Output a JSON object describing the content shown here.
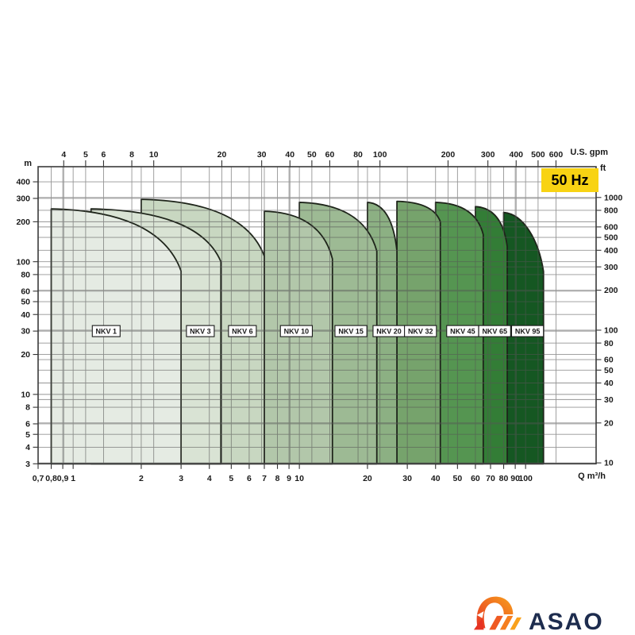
{
  "chart_data": {
    "type": "area",
    "badge": "50 Hz",
    "q_range": [
      0.7,
      205
    ],
    "h_range": [
      3,
      520
    ],
    "x_axis_bottom": {
      "unit": "Q m³/h",
      "ticks": [
        0.7,
        0.8,
        0.9,
        1,
        2,
        3,
        4,
        5,
        6,
        7,
        8,
        9,
        10,
        20,
        30,
        40,
        50,
        60,
        70,
        80,
        90,
        100
      ],
      "tick_labels": [
        "0,7",
        "0,8",
        "0,9",
        "1",
        "2",
        "3",
        "4",
        "5",
        "6",
        "7",
        "8",
        "9",
        "10",
        "20",
        "30",
        "40",
        "50",
        "60",
        "70",
        "80",
        "90",
        "100"
      ]
    },
    "x_axis_top": {
      "unit": "U.S. gpm",
      "gpm_per_m3h": 4.4029,
      "ticks": [
        4,
        5,
        6,
        8,
        10,
        20,
        30,
        40,
        50,
        60,
        80,
        100,
        200,
        300,
        400,
        500,
        600
      ]
    },
    "y_axis_left": {
      "unit": "m",
      "ticks": [
        400,
        300,
        200,
        100,
        80,
        60,
        50,
        40,
        30,
        20,
        10,
        8,
        6,
        5,
        4,
        3
      ]
    },
    "y_axis_right": {
      "unit": "ft",
      "ft_per_m": 3.2808,
      "ticks": [
        1000,
        800,
        600,
        500,
        400,
        300,
        200,
        100,
        80,
        60,
        50,
        40,
        30,
        20,
        10
      ]
    },
    "label_row_head_m": 30,
    "regions": [
      {
        "label": "NKV 1",
        "q_min": 0.8,
        "q_max": 3,
        "h_max": 250,
        "h_at_qmax": 85,
        "label_q": 1.4,
        "color": "#e5ebe3"
      },
      {
        "label": "NKV 3",
        "q_min": 1.2,
        "q_max": 4.5,
        "h_max": 250,
        "h_at_qmax": 100,
        "label_q": 3.65,
        "color": "#d9e3d4"
      },
      {
        "label": "NKV 6",
        "q_min": 2,
        "q_max": 7,
        "h_max": 295,
        "h_at_qmax": 110,
        "label_q": 5.6,
        "color": "#c8d7c1"
      },
      {
        "label": "NKV 10",
        "q_min": 7,
        "q_max": 14,
        "h_max": 240,
        "h_at_qmax": 105,
        "label_q": 9.7,
        "color": "#b2c7aa"
      },
      {
        "label": "NKV 15",
        "q_min": 10,
        "q_max": 22,
        "h_max": 280,
        "h_at_qmax": 120,
        "label_q": 16.9,
        "color": "#9dba94"
      },
      {
        "label": "NKV 20",
        "q_min": 20,
        "q_max": 27,
        "h_max": 280,
        "h_at_qmax": 120,
        "label_q": 24.9,
        "color": "#8cb083"
      },
      {
        "label": "NKV 32",
        "q_min": 27,
        "q_max": 42,
        "h_max": 285,
        "h_at_qmax": 200,
        "label_q": 34.3,
        "color": "#76a36c"
      },
      {
        "label": "NKV 45",
        "q_min": 40,
        "q_max": 65,
        "h_max": 280,
        "h_at_qmax": 160,
        "label_q": 52.7,
        "color": "#559551"
      },
      {
        "label": "NKV 65",
        "q_min": 60,
        "q_max": 83,
        "h_max": 260,
        "h_at_qmax": 130,
        "label_q": 73,
        "color": "#337d36"
      },
      {
        "label": "NKV 95",
        "q_min": 80,
        "q_max": 120,
        "h_max": 235,
        "h_at_qmax": 60,
        "label_q": 102,
        "rounded": true,
        "color": "#155722"
      }
    ],
    "style": {
      "grid_color": "#555555",
      "frame_color": "#3a3a3a",
      "region_outline": "#1e241a",
      "badge_bg": "#f8d313"
    }
  },
  "logo": {
    "text": "ASAO"
  }
}
